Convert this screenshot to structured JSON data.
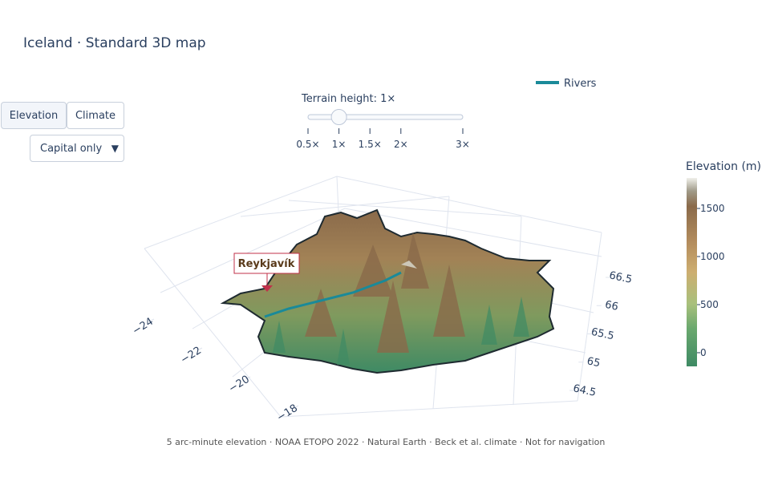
{
  "title": "Iceland · Standard 3D map",
  "buttons": [
    "Elevation",
    "Climate"
  ],
  "dropdown": "Capital only",
  "slider": {
    "label": "Terrain height: 1×",
    "value": 1,
    "range": [
      0.5,
      3
    ],
    "ticks": [
      {
        "value": 0.5,
        "label": "0.5×"
      },
      {
        "value": 1,
        "label": "1×"
      },
      {
        "value": 1.5,
        "label": "1.5×"
      },
      {
        "value": 2,
        "label": "2×"
      },
      {
        "value": 3,
        "label": "3×"
      }
    ]
  },
  "legend": {
    "name": "Rivers",
    "color": "#1a8a99"
  },
  "colorbar": {
    "title": "Elevation (m)",
    "range": [
      -142,
      1817
    ],
    "ticks": [
      0,
      500,
      1000,
      1500
    ]
  },
  "axes": {
    "lon": {
      "range": [
        -24,
        -18
      ],
      "ticks": [
        {
          "value": -24,
          "label": "−24"
        },
        {
          "value": -22,
          "label": "−22"
        },
        {
          "value": -20,
          "label": "−20"
        },
        {
          "value": -18,
          "label": "−18"
        }
      ]
    },
    "lat": {
      "range": [
        64.5,
        66.5
      ],
      "ticks": [
        64.5,
        65,
        65.5,
        66,
        66.5
      ]
    }
  },
  "annotation": "Reykjavík",
  "footer": "5 arc-minute elevation · NOAA ETOPO 2022 · Natural Earth · Beck et al. climate · Not for navigation"
}
